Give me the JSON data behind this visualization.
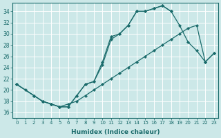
{
  "xlabel": "Humidex (Indice chaleur)",
  "bg_color": "#cce8e8",
  "grid_color": "#ffffff",
  "line_color": "#1a6b6b",
  "xlim": [
    -0.5,
    23.5
  ],
  "ylim": [
    15,
    35.5
  ],
  "xticks": [
    0,
    1,
    2,
    3,
    4,
    5,
    6,
    7,
    8,
    9,
    10,
    11,
    12,
    13,
    14,
    15,
    16,
    17,
    18,
    19,
    20,
    21,
    22,
    23
  ],
  "yticks": [
    16,
    18,
    20,
    22,
    24,
    26,
    28,
    30,
    32,
    34
  ],
  "line1_x": [
    0,
    1,
    2,
    3,
    4,
    5,
    6,
    7,
    8,
    9,
    10,
    11,
    12,
    13,
    14,
    15,
    16,
    17,
    18
  ],
  "line1_y": [
    21,
    20,
    19,
    18,
    17.5,
    17,
    17,
    19,
    21,
    21.5,
    24.5,
    29,
    30,
    31.5,
    34,
    34,
    34.5,
    35,
    34
  ],
  "line2_x": [
    0,
    2,
    3,
    4,
    5,
    6,
    7,
    8,
    9,
    10,
    11,
    12,
    13,
    14,
    15,
    16,
    17,
    18,
    19,
    20,
    21,
    22,
    23
  ],
  "line2_y": [
    21,
    19,
    18,
    17.5,
    17,
    17,
    19,
    21,
    21.5,
    25,
    29.5,
    30,
    31.5,
    34,
    34,
    34.5,
    35,
    34,
    31.5,
    28.5,
    27,
    25,
    26.5
  ],
  "line3_x": [
    0,
    2,
    3,
    4,
    5,
    6,
    7,
    8,
    9,
    10,
    11,
    12,
    13,
    14,
    15,
    16,
    17,
    18,
    19,
    20,
    21,
    22,
    23
  ],
  "line3_y": [
    21,
    19,
    18,
    17.5,
    17,
    17.5,
    18,
    19,
    20,
    21,
    22,
    23,
    24,
    25,
    26,
    27,
    28,
    29,
    30,
    31,
    31.5,
    25,
    26.5
  ]
}
